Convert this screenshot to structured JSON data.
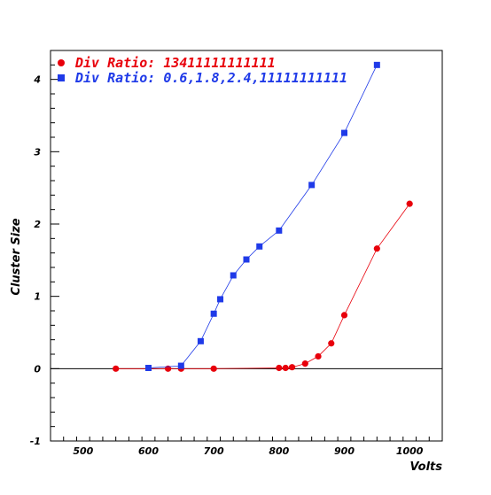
{
  "chart_data": {
    "type": "line",
    "title": "",
    "xlabel": "Volts",
    "ylabel": "Cluster Size",
    "xlim": [
      450,
      1050
    ],
    "ylim": [
      -1,
      4.4
    ],
    "x_ticks": [
      500,
      600,
      700,
      800,
      900,
      1000
    ],
    "y_ticks": [
      -1,
      0,
      1,
      2,
      3,
      4
    ],
    "zero_line": true,
    "grid": false,
    "legend_position": "top-left",
    "series": [
      {
        "name": "Div Ratio: 13411111111111",
        "color": "#e8000b",
        "marker": "circle",
        "points": [
          [
            550,
            0.0
          ],
          [
            630,
            0.0
          ],
          [
            650,
            0.0
          ],
          [
            700,
            0.0
          ],
          [
            800,
            0.01
          ],
          [
            810,
            0.01
          ],
          [
            820,
            0.02
          ],
          [
            840,
            0.07
          ],
          [
            860,
            0.17
          ],
          [
            880,
            0.35
          ],
          [
            900,
            0.74
          ],
          [
            950,
            1.66
          ],
          [
            1000,
            2.28
          ]
        ]
      },
      {
        "name": "Div Ratio: 0.6,1.8,2.4,11111111111",
        "color": "#1f3ae8",
        "marker": "square",
        "points": [
          [
            600,
            0.01
          ],
          [
            650,
            0.04
          ],
          [
            680,
            0.38
          ],
          [
            700,
            0.76
          ],
          [
            710,
            0.96
          ],
          [
            730,
            1.29
          ],
          [
            750,
            1.51
          ],
          [
            770,
            1.69
          ],
          [
            800,
            1.91
          ],
          [
            850,
            2.54
          ],
          [
            900,
            3.26
          ],
          [
            950,
            4.2
          ]
        ]
      }
    ]
  }
}
